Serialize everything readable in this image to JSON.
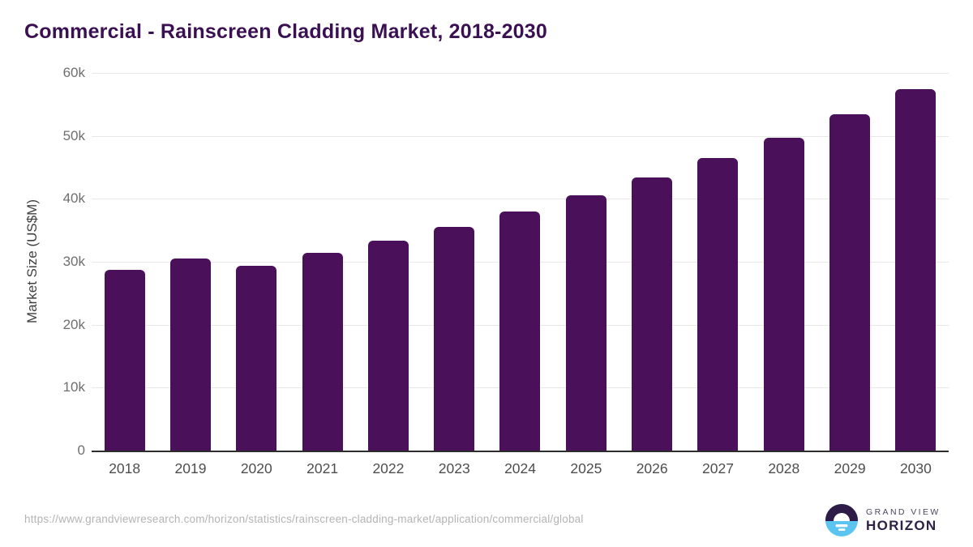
{
  "chart_data": {
    "type": "bar",
    "title": "Commercial - Rainscreen Cladding Market, 2018-2030",
    "categories": [
      "2018",
      "2019",
      "2020",
      "2021",
      "2022",
      "2023",
      "2024",
      "2025",
      "2026",
      "2027",
      "2028",
      "2029",
      "2030"
    ],
    "values": [
      28700,
      30500,
      29400,
      31400,
      33300,
      35500,
      38000,
      40500,
      43400,
      46500,
      49700,
      53400,
      57400
    ],
    "xlabel": "",
    "ylabel": "Market Size (US$M)",
    "ylim": [
      0,
      60000
    ],
    "yticks": [
      {
        "value": 0,
        "label": "0"
      },
      {
        "value": 10000,
        "label": "10k"
      },
      {
        "value": 20000,
        "label": "20k"
      },
      {
        "value": 30000,
        "label": "30k"
      },
      {
        "value": 40000,
        "label": "40k"
      },
      {
        "value": 50000,
        "label": "50k"
      },
      {
        "value": 60000,
        "label": "60k"
      }
    ],
    "grid": "horizontal",
    "legend": "none",
    "bar_color": "#4a1059",
    "unit": "US$M"
  },
  "footer": {
    "source_url": "https://www.grandviewresearch.com/horizon/statistics/rainscreen-cladding-market/application/commercial/global",
    "logo_line1": "GRAND VIEW",
    "logo_line2": "HORIZON"
  },
  "colors": {
    "background": "#ffffff",
    "title": "#3b1053",
    "bar": "#4a1059",
    "gridline": "#e8e8e8",
    "axis_line": "#2d2d2d",
    "y_tick_label": "#6e6e6e",
    "x_tick_label": "#4d4d4d",
    "y_axis_title": "#3f3f3f",
    "source_url": "#b4b4b4",
    "logo_dark_half": "#2e1b48",
    "logo_blue_half": "#5bc4f1",
    "logo_text_top": "#4a4664",
    "logo_text_bottom": "#2e2147"
  }
}
